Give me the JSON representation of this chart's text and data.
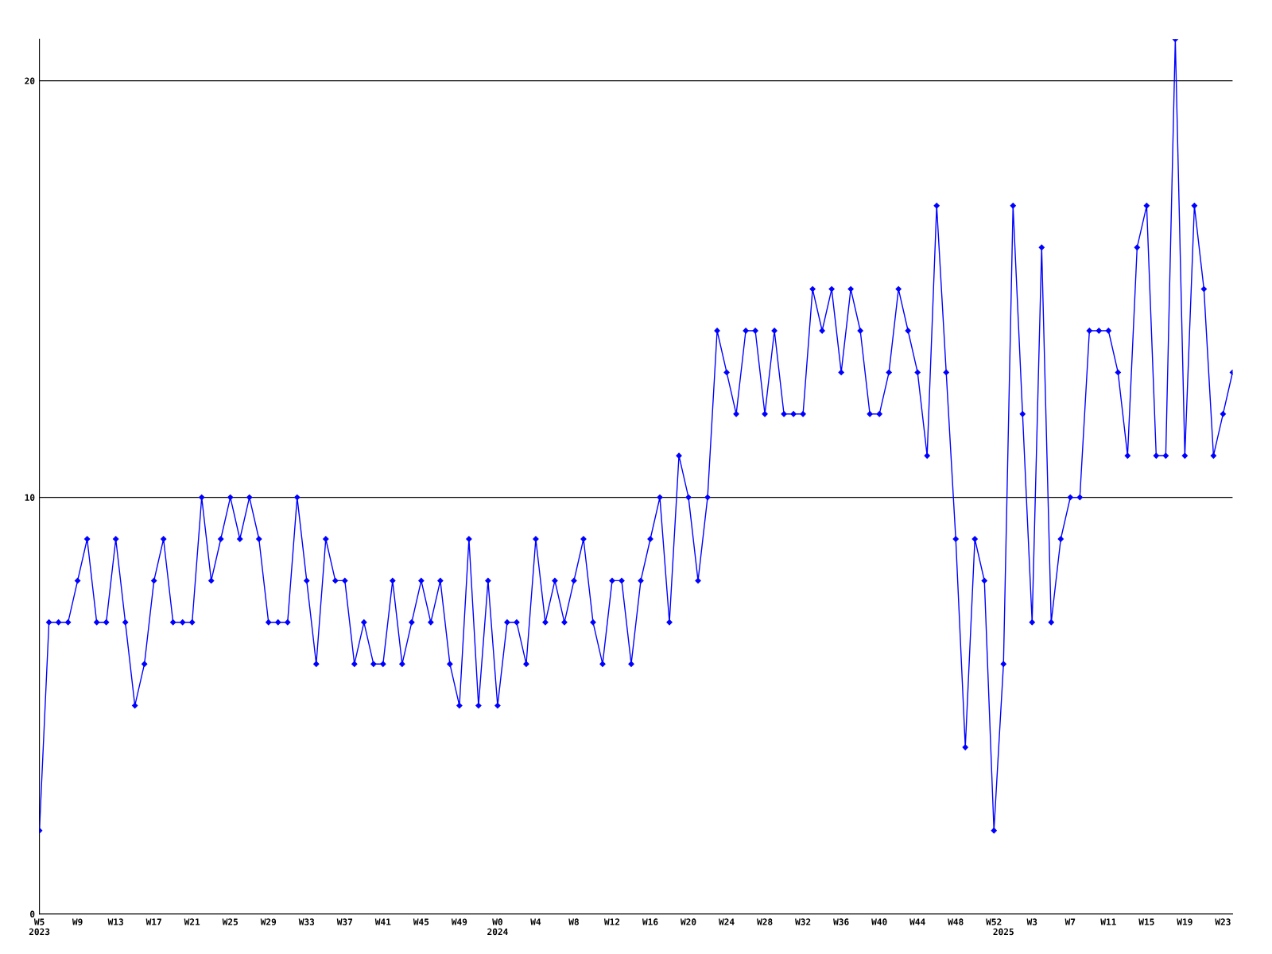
{
  "chart_data": {
    "type": "line",
    "categories": [
      "W5\n2023",
      null,
      null,
      null,
      "W9",
      null,
      null,
      null,
      "W13",
      null,
      null,
      null,
      "W17",
      null,
      null,
      null,
      "W21",
      null,
      null,
      null,
      "W25",
      null,
      null,
      null,
      "W29",
      null,
      null,
      null,
      "W33",
      null,
      null,
      null,
      "W37",
      null,
      null,
      null,
      "W41",
      null,
      null,
      null,
      "W45",
      null,
      null,
      null,
      "W49",
      null,
      null,
      null,
      "W0\n2024",
      null,
      null,
      null,
      "W4",
      null,
      null,
      null,
      "W8",
      null,
      null,
      null,
      "W12",
      null,
      null,
      null,
      "W16",
      null,
      null,
      null,
      "W20",
      null,
      null,
      null,
      "W24",
      null,
      null,
      null,
      "W28",
      null,
      null,
      null,
      "W32",
      null,
      null,
      null,
      "W36",
      null,
      null,
      null,
      "W40",
      null,
      null,
      null,
      "W44",
      null,
      null,
      null,
      "W48",
      null,
      null,
      null,
      "W52",
      "\n2025",
      null,
      null,
      "W3",
      null,
      null,
      null,
      "W7",
      null,
      null,
      null,
      "W11",
      null,
      null,
      null,
      "W15",
      null,
      null,
      null,
      "W19",
      null,
      null,
      null,
      "W23",
      null
    ],
    "series": [
      {
        "color": "#0000ff",
        "values": [
          2,
          7,
          7,
          7,
          8,
          9,
          7,
          7,
          9,
          7,
          5,
          6,
          8,
          9,
          7,
          7,
          7,
          10,
          8,
          9,
          10,
          9,
          10,
          9,
          7,
          7,
          7,
          10,
          8,
          6,
          9,
          8,
          8,
          6,
          7,
          6,
          6,
          8,
          6,
          7,
          8,
          7,
          8,
          6,
          5,
          9,
          5,
          8,
          5,
          7,
          7,
          6,
          9,
          7,
          8,
          7,
          8,
          9,
          7,
          6,
          8,
          8,
          6,
          8,
          9,
          10,
          7,
          11,
          10,
          8,
          10,
          14,
          13,
          12,
          14,
          14,
          12,
          14,
          12,
          12,
          12,
          15,
          14,
          15,
          13,
          15,
          14,
          12,
          12,
          13,
          15,
          14,
          13,
          11,
          17,
          13,
          9,
          4,
          9,
          8,
          2,
          6,
          17,
          12,
          7,
          16,
          7,
          9,
          10,
          10,
          14,
          14,
          14,
          13,
          11,
          16,
          17,
          11,
          11,
          21,
          11,
          17,
          15,
          11,
          12,
          13
        ]
      }
    ],
    "ylim": [
      0,
      21
    ],
    "yticks": [
      0,
      10,
      20
    ],
    "grid": "y",
    "marker": "diamond",
    "line_style": "solid"
  }
}
